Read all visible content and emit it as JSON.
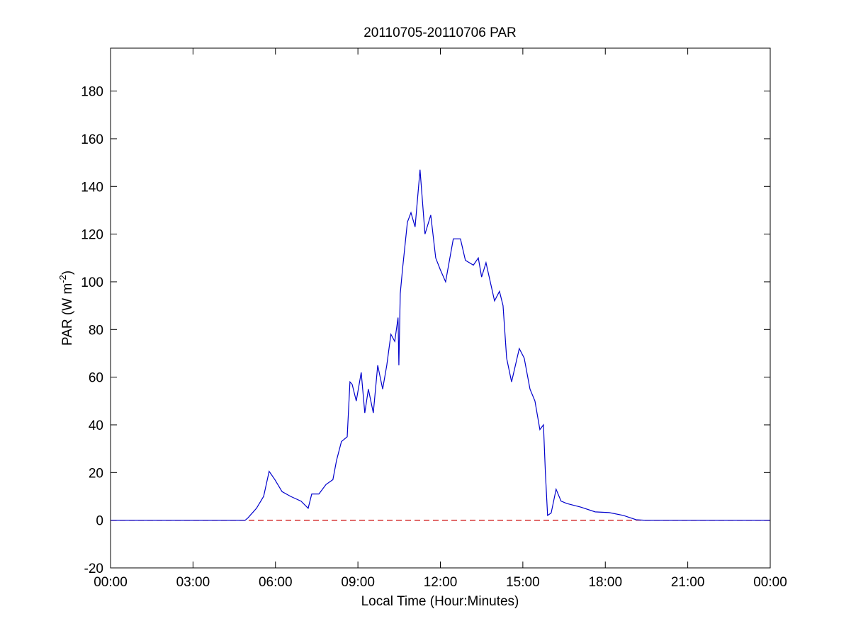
{
  "chart_data": {
    "type": "line",
    "title": "20110705-20110706 PAR",
    "xlabel": "Local Time (Hour:Minutes)",
    "ylabel": [
      "PAR (W m",
      "-2",
      ")"
    ],
    "xlim": [
      0,
      24
    ],
    "xticks": [
      {
        "value": 0,
        "label": "00:00"
      },
      {
        "value": 3,
        "label": "03:00"
      },
      {
        "value": 6,
        "label": "06:00"
      },
      {
        "value": 9,
        "label": "09:00"
      },
      {
        "value": 12,
        "label": "12:00"
      },
      {
        "value": 15,
        "label": "15:00"
      },
      {
        "value": 18,
        "label": "18:00"
      },
      {
        "value": 21,
        "label": "21:00"
      },
      {
        "value": 24,
        "label": "00:00"
      }
    ],
    "ylim": [
      -20,
      198
    ],
    "yticks": [
      -20,
      0,
      20,
      40,
      60,
      80,
      100,
      120,
      140,
      160,
      180
    ],
    "x": [
      0,
      4.9,
      5.0,
      5.31,
      5.57,
      5.77,
      5.98,
      6.24,
      6.55,
      6.93,
      7.19,
      7.32,
      7.58,
      7.84,
      8.09,
      8.22,
      8.4,
      8.61,
      8.71,
      8.79,
      8.94,
      9.12,
      9.25,
      9.38,
      9.56,
      9.72,
      9.9,
      10.05,
      10.2,
      10.34,
      10.46,
      10.49,
      10.54,
      10.62,
      10.8,
      10.93,
      11.08,
      11.26,
      11.44,
      11.65,
      11.83,
      12.0,
      12.19,
      12.47,
      12.73,
      12.91,
      13.2,
      13.38,
      13.5,
      13.66,
      13.97,
      14.15,
      14.28,
      14.41,
      14.59,
      14.87,
      15.05,
      15.26,
      15.44,
      15.62,
      15.75,
      15.82,
      15.9,
      16.03,
      16.21,
      16.39,
      16.6,
      17.11,
      17.63,
      18.14,
      18.66,
      19.12,
      19.4,
      24
    ],
    "series": [
      {
        "color": "#0000cc",
        "values": [
          0,
          0,
          1,
          5,
          10,
          20.5,
          17,
          12,
          10,
          8,
          5,
          11,
          11,
          15,
          17,
          25,
          33,
          35,
          58,
          57,
          50,
          62,
          45,
          55,
          45,
          65,
          55,
          65,
          78,
          75,
          85,
          65,
          95,
          105,
          125,
          129,
          123,
          147,
          120,
          128,
          110,
          105,
          100,
          118,
          118,
          109,
          107,
          110,
          102,
          108,
          92,
          96,
          90,
          68,
          58,
          72,
          68,
          55,
          50,
          38,
          40,
          20,
          2,
          3,
          13,
          8,
          7,
          5.5,
          3.5,
          3.2,
          2,
          0.2,
          0,
          0
        ]
      }
    ],
    "hline": {
      "value": 0,
      "color": "#cc0000"
    }
  }
}
